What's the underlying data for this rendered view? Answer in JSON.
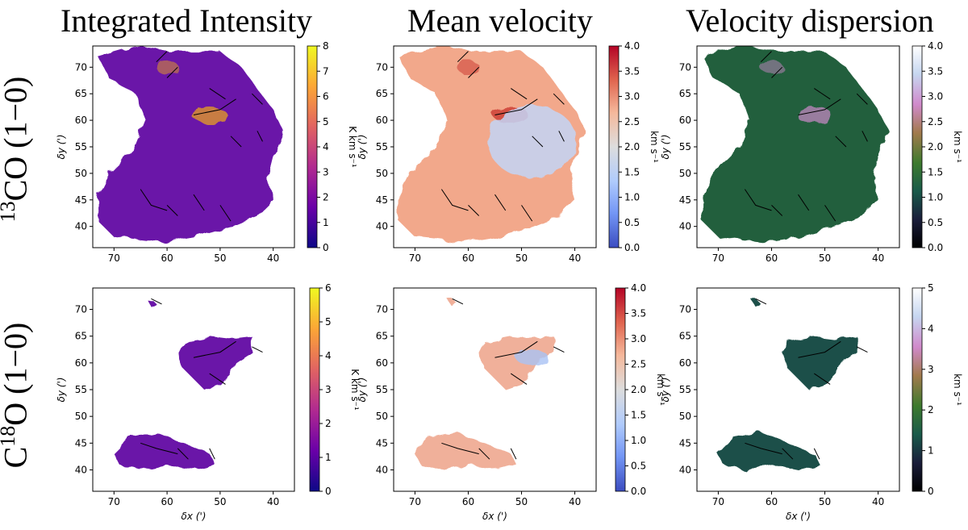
{
  "column_titles": [
    "Integrated Intensity",
    "Mean velocity",
    "Velocity dispersion"
  ],
  "row_labels": [
    {
      "sup": "13",
      "main": "CO (1−0)"
    },
    {
      "sup": "18",
      "main": "O (1−0)",
      "prefix": "C"
    }
  ],
  "axes": {
    "xlabel": "δx (')",
    "ylabel": "δy (')",
    "x_ticks": [
      "70",
      "60",
      "50",
      "40"
    ],
    "y_ticks": [
      "70",
      "65",
      "60",
      "55",
      "50",
      "45",
      "40"
    ]
  },
  "colors": {
    "plasma": [
      "#0d0887",
      "#6a00a8",
      "#b12a90",
      "#e16462",
      "#fca636",
      "#f0f921"
    ],
    "coolwarm": [
      "#3b4cc0",
      "#7396f5",
      "#b0cbfc",
      "#dddddd",
      "#f5b89b",
      "#e0654f",
      "#b40426"
    ],
    "cubehelix": [
      "#000000",
      "#1a1d3a",
      "#1a5a4a",
      "#3d7a2e",
      "#a27a4d",
      "#d08acb",
      "#c6d6f0",
      "#ffffff"
    ]
  },
  "chart_data": [
    {
      "type": "heatmap",
      "panel": "13CO integrated intensity",
      "colorbar_label": "K km s⁻¹",
      "colorbar_range": [
        0,
        8
      ],
      "colorbar_ticks": [
        "0",
        "1",
        "2",
        "3",
        "4",
        "5",
        "6",
        "7",
        "8"
      ],
      "x_range": [
        74,
        36
      ],
      "y_range": [
        36,
        74
      ]
    },
    {
      "type": "heatmap",
      "panel": "13CO mean velocity",
      "colorbar_label": "km s⁻¹",
      "colorbar_range": [
        0,
        4
      ],
      "colorbar_ticks": [
        "0.0",
        "0.5",
        "1.0",
        "1.5",
        "2.0",
        "2.5",
        "3.0",
        "3.5",
        "4.0"
      ],
      "x_range": [
        74,
        36
      ],
      "y_range": [
        36,
        74
      ]
    },
    {
      "type": "heatmap",
      "panel": "13CO velocity dispersion",
      "colorbar_label": "km s⁻¹",
      "colorbar_range": [
        0,
        4
      ],
      "colorbar_ticks": [
        "0.0",
        "0.5",
        "1.0",
        "1.5",
        "2.0",
        "2.5",
        "3.0",
        "3.5",
        "4.0"
      ],
      "x_range": [
        74,
        36
      ],
      "y_range": [
        36,
        74
      ]
    },
    {
      "type": "heatmap",
      "panel": "C18O integrated intensity",
      "colorbar_label": "K km s⁻¹",
      "colorbar_range": [
        0,
        6
      ],
      "colorbar_ticks": [
        "0",
        "1",
        "2",
        "3",
        "4",
        "5",
        "6"
      ],
      "x_range": [
        74,
        36
      ],
      "y_range": [
        36,
        74
      ]
    },
    {
      "type": "heatmap",
      "panel": "C18O mean velocity",
      "colorbar_label": "km s⁻¹",
      "colorbar_range": [
        0,
        4
      ],
      "colorbar_ticks": [
        "0.0",
        "0.5",
        "1.0",
        "1.5",
        "2.0",
        "2.5",
        "3.0",
        "3.5",
        "4.0"
      ],
      "x_range": [
        74,
        36
      ],
      "y_range": [
        36,
        74
      ]
    },
    {
      "type": "heatmap",
      "panel": "C18O velocity dispersion",
      "colorbar_label": "km s⁻¹",
      "colorbar_range": [
        0,
        5
      ],
      "colorbar_ticks": [
        "0",
        "1",
        "2",
        "3",
        "4",
        "5"
      ],
      "x_range": [
        74,
        36
      ],
      "y_range": [
        36,
        74
      ]
    }
  ]
}
